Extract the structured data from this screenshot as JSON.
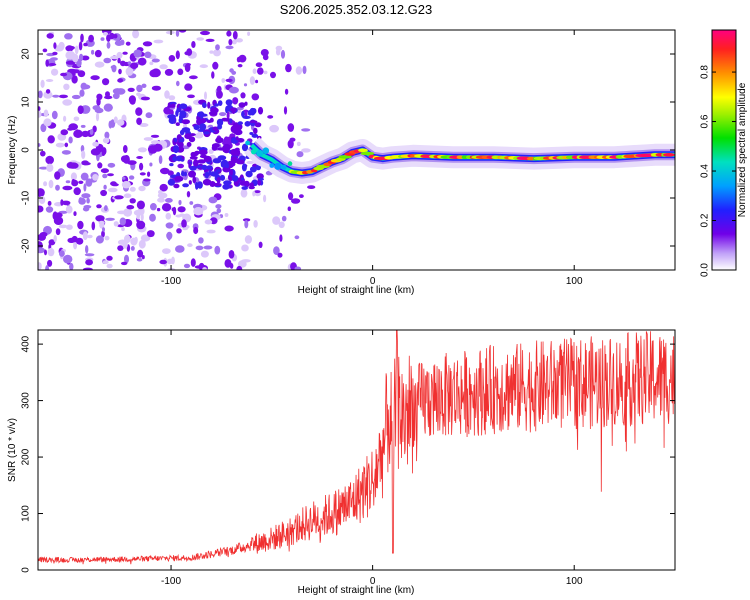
{
  "title": "S206.2025.352.03.12.G23",
  "chart_data": [
    {
      "type": "heatmap",
      "xlabel": "Height of straight line (km)",
      "ylabel": "Frequency (Hz)",
      "xlim": [
        -166,
        150
      ],
      "ylim": [
        -25,
        25
      ],
      "xticks": [
        -100,
        0,
        100
      ],
      "yticks": [
        -20,
        -10,
        0,
        10,
        20
      ],
      "ridge": [
        [
          -60,
          1
        ],
        [
          -55,
          -1
        ],
        [
          -50,
          -2
        ],
        [
          -45,
          -3.5
        ],
        [
          -40,
          -4.5
        ],
        [
          -35,
          -4.8
        ],
        [
          -30,
          -4.5
        ],
        [
          -25,
          -3.5
        ],
        [
          -20,
          -2.5
        ],
        [
          -15,
          -1.8
        ],
        [
          -10,
          -0.5
        ],
        [
          -5,
          0
        ],
        [
          0,
          -1.5
        ],
        [
          5,
          -1.8
        ],
        [
          10,
          -1.5
        ],
        [
          20,
          -1.2
        ],
        [
          40,
          -1.5
        ],
        [
          60,
          -1.5
        ],
        [
          80,
          -1.8
        ],
        [
          100,
          -1.5
        ],
        [
          120,
          -1.5
        ],
        [
          140,
          -1
        ],
        [
          150,
          -1
        ]
      ],
      "colorbar": {
        "label": "Normalized spectral amplitude",
        "ticks": [
          "0.0",
          "0.2",
          "0.4",
          "0.6",
          "0.8"
        ],
        "range": [
          0,
          0.97
        ]
      }
    },
    {
      "type": "line",
      "xlabel": "Height of straight line (km)",
      "ylabel": "SNR (10 * v/v)",
      "xlim": [
        -166,
        150
      ],
      "ylim": [
        0,
        425
      ],
      "xticks": [
        -100,
        0,
        100
      ],
      "yticks": [
        0,
        100,
        200,
        300,
        400
      ],
      "color": "#f03030",
      "series": [
        {
          "name": "SNR",
          "x": [
            -166,
            -150,
            -130,
            -110,
            -90,
            -80,
            -70,
            -60,
            -50,
            -40,
            -30,
            -20,
            -10,
            0,
            5,
            8,
            10,
            12,
            15,
            20,
            25,
            30,
            40,
            50,
            60,
            70,
            80,
            90,
            100,
            110,
            120,
            130,
            140,
            150
          ],
          "values": [
            18,
            18,
            19,
            20,
            22,
            28,
            35,
            45,
            55,
            70,
            88,
            100,
            120,
            160,
            210,
            280,
            240,
            300,
            270,
            285,
            300,
            305,
            310,
            315,
            320,
            322,
            325,
            328,
            330,
            332,
            335,
            338,
            340,
            342
          ]
        }
      ]
    }
  ]
}
